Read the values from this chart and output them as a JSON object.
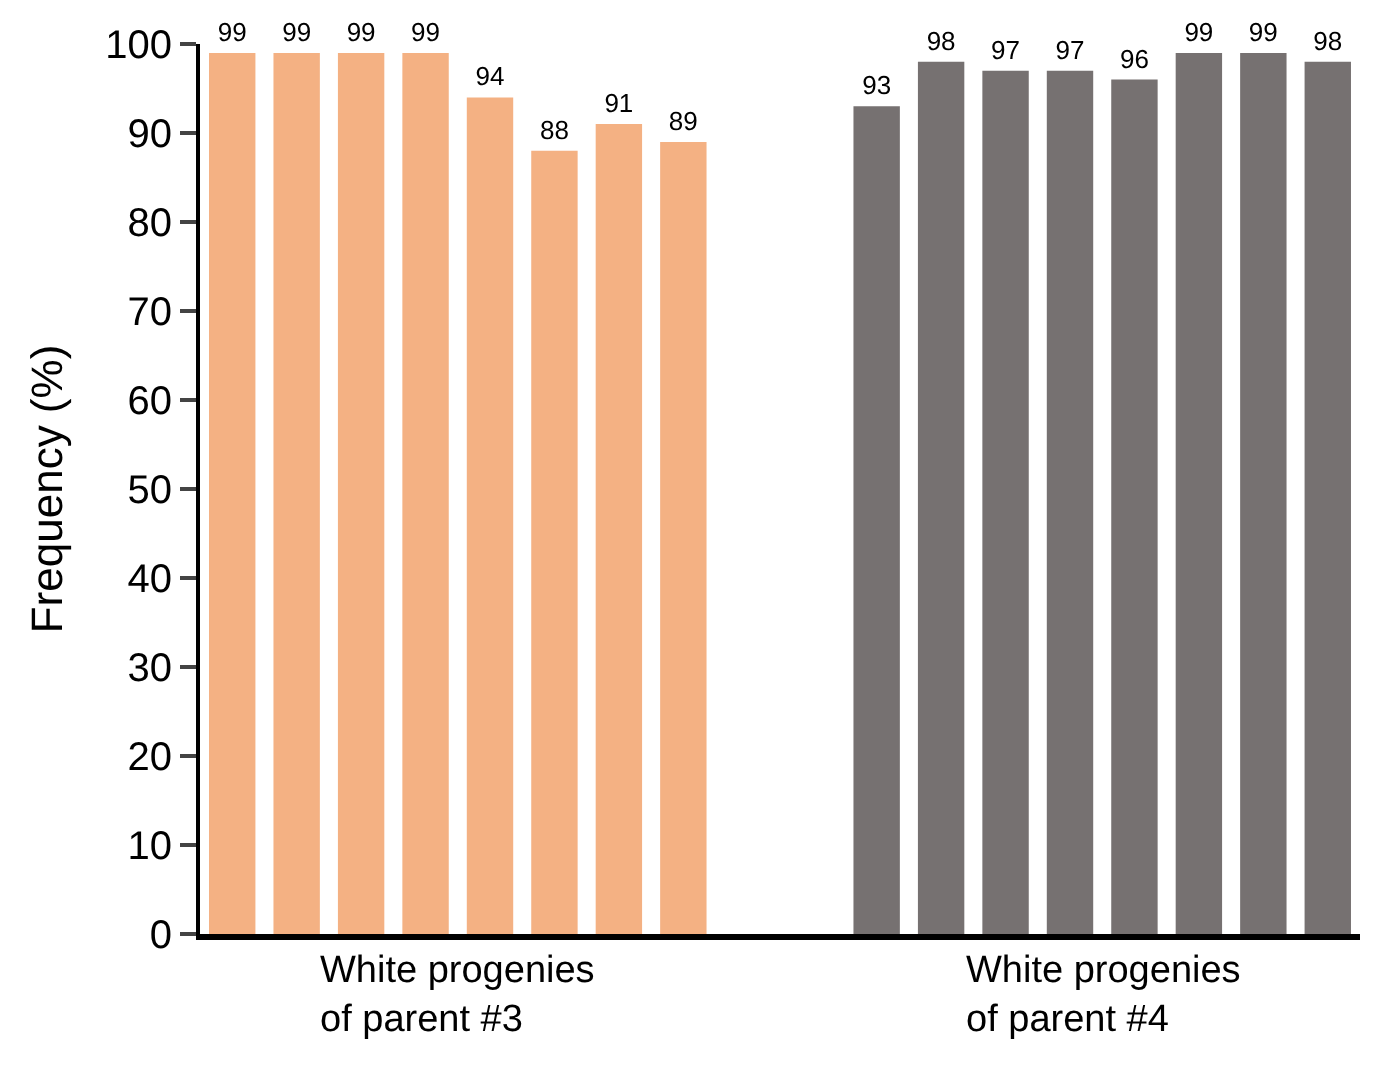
{
  "chart_data": {
    "type": "bar",
    "ylabel": "Frequency (%)",
    "categories": [
      null,
      null,
      null,
      null,
      null,
      null,
      null,
      null,
      null,
      null,
      null,
      null,
      null,
      null,
      null,
      null,
      null,
      null
    ],
    "series": [
      {
        "color": "#f4b183",
        "values": [
          99,
          99,
          99,
          99,
          94,
          88,
          91,
          89,
          null,
          null,
          null,
          null,
          null,
          null,
          null,
          null,
          null,
          null
        ]
      },
      {
        "color": "#767171",
        "values": [
          null,
          null,
          null,
          null,
          null,
          null,
          null,
          null,
          null,
          null,
          93,
          98,
          97,
          97,
          96,
          99,
          99,
          98
        ]
      }
    ],
    "annotations": [
      "White progenies\nof parent #3",
      "White progenies\nof parent #4"
    ],
    "ylim": [
      0,
      100
    ],
    "yticks": [
      0,
      10,
      20,
      30,
      40,
      50,
      60,
      70,
      80,
      90,
      100
    ],
    "data_labels": true
  }
}
